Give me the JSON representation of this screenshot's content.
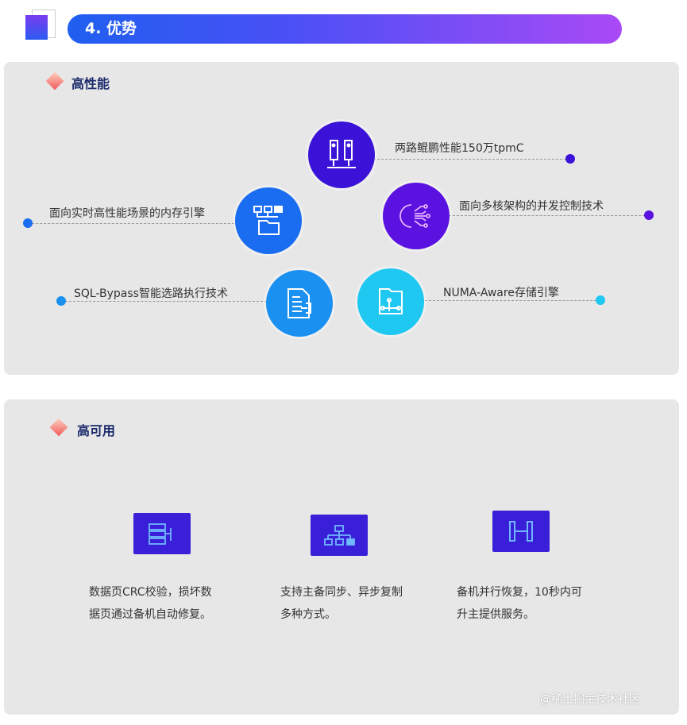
{
  "header": {
    "title": "4. 优势"
  },
  "performance": {
    "title": "高性能",
    "features": [
      {
        "label": "两路鲲鹏性能150万tpmC",
        "icon": "server-icon",
        "color": "#3a12d8"
      },
      {
        "label": "面向实时高性能场景的内存引擎",
        "icon": "folder-tree-icon",
        "color": "#1a6df0"
      },
      {
        "label": "面向多核架构的并发控制技术",
        "icon": "gear-circuit-icon",
        "color": "#5a12e0"
      },
      {
        "label": "SQL-Bypass智能选路执行技术",
        "icon": "document-route-icon",
        "color": "#1a90f0"
      },
      {
        "label": "NUMA-Aware存储引擎",
        "icon": "folder-branch-icon",
        "color": "#1ec8f0"
      }
    ]
  },
  "availability": {
    "title": "高可用",
    "items": [
      {
        "line1": "数据页CRC校验，损坏数",
        "line2": "据页通过备机自动修复。",
        "icon": "storage-check-icon"
      },
      {
        "line1": "支持主备同步、异步复制",
        "line2": "多种方式。",
        "icon": "hierarchy-icon"
      },
      {
        "line1": "备机并行恢复，10秒内可",
        "line2": "升主提供服务。",
        "icon": "parallel-icon"
      }
    ]
  },
  "watermark": "@稀土掘金技术社区"
}
